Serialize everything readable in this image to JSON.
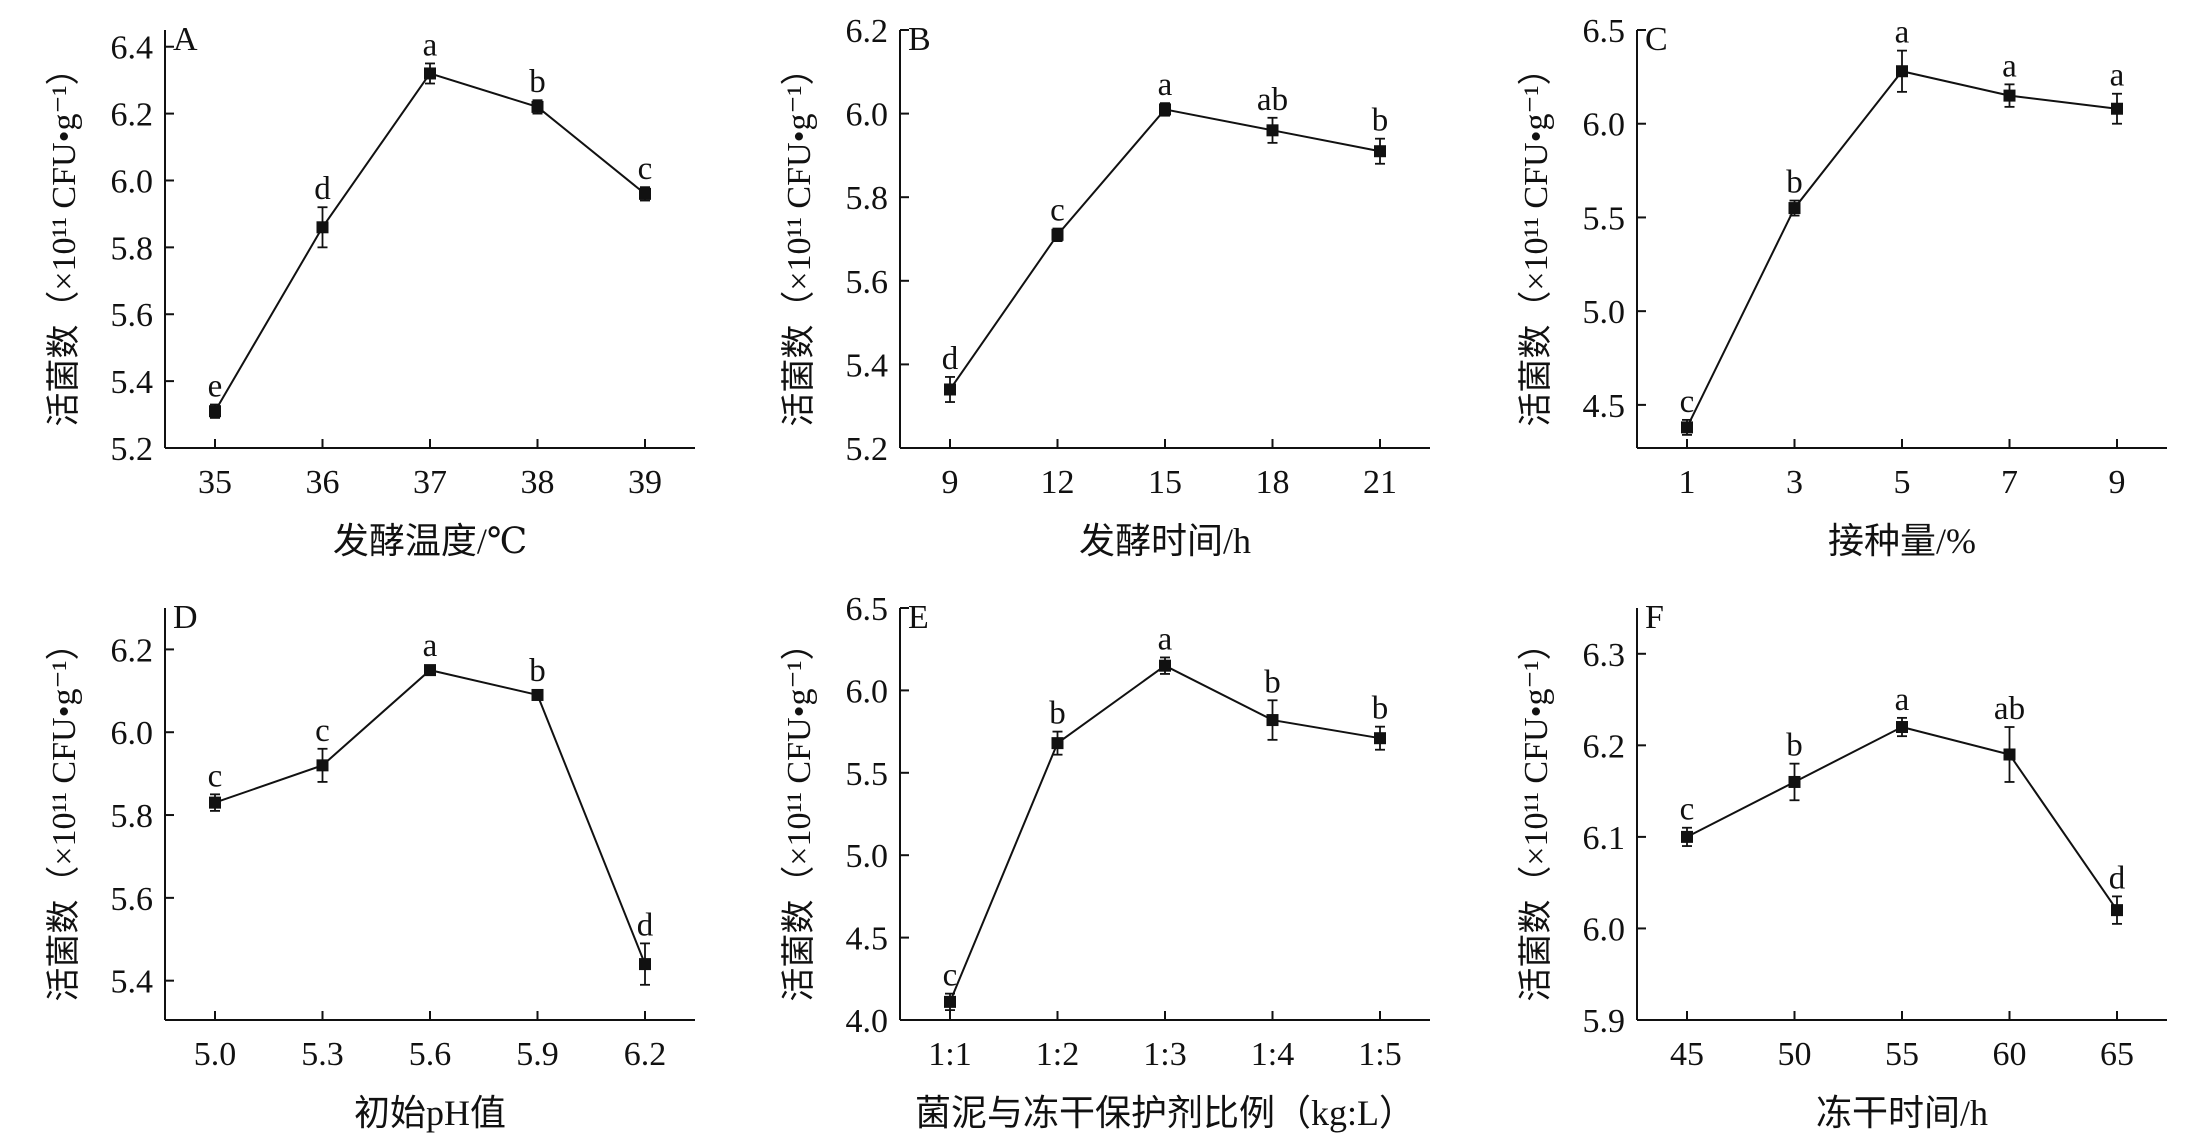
{
  "chart_data": [
    {
      "type": "line",
      "panel": "A",
      "xlabel": "发酵温度/℃",
      "ylabel": "活菌数（×10¹¹ CFU•g⁻¹）",
      "categories": [
        "35",
        "36",
        "37",
        "38",
        "39"
      ],
      "values": [
        5.31,
        5.86,
        6.32,
        6.22,
        5.96
      ],
      "errors": [
        0.02,
        0.06,
        0.03,
        0.02,
        0.02
      ],
      "labels": [
        "e",
        "d",
        "a",
        "b",
        "c"
      ],
      "ylim": [
        5.2,
        6.45
      ],
      "yticks": [
        "5.2",
        "5.4",
        "5.6",
        "5.8",
        "6.0",
        "6.2",
        "6.4"
      ]
    },
    {
      "type": "line",
      "panel": "B",
      "xlabel": "发酵时间/h",
      "ylabel": "活菌数（×10¹¹ CFU•g⁻¹）",
      "categories": [
        "9",
        "12",
        "15",
        "18",
        "21"
      ],
      "values": [
        5.34,
        5.71,
        6.01,
        5.96,
        5.91
      ],
      "errors": [
        0.03,
        0.015,
        0.015,
        0.03,
        0.03
      ],
      "labels": [
        "d",
        "c",
        "a",
        "ab",
        "b"
      ],
      "ylim": [
        5.2,
        6.2
      ],
      "yticks": [
        "5.2",
        "5.4",
        "5.6",
        "5.8",
        "6.0",
        "6.2"
      ]
    },
    {
      "type": "line",
      "panel": "C",
      "xlabel": "接种量/%",
      "ylabel": "活菌数（×10¹¹ CFU•g⁻¹）",
      "categories": [
        "1",
        "3",
        "5",
        "7",
        "9"
      ],
      "values": [
        4.38,
        5.55,
        6.28,
        6.15,
        6.08
      ],
      "errors": [
        0.04,
        0.04,
        0.11,
        0.06,
        0.08
      ],
      "labels": [
        "c",
        "b",
        "a",
        "a",
        "a"
      ],
      "ylim": [
        4.27,
        6.5
      ],
      "yticks": [
        "4.5",
        "5.0",
        "5.5",
        "6.0",
        "6.5"
      ]
    },
    {
      "type": "line",
      "panel": "D",
      "xlabel": "初始pH值",
      "ylabel": "活菌数（×10¹¹ CFU•g⁻¹）",
      "categories": [
        "5.0",
        "5.3",
        "5.6",
        "5.9",
        "6.2"
      ],
      "values": [
        5.83,
        5.92,
        6.15,
        6.09,
        5.44
      ],
      "errors": [
        0.02,
        0.04,
        0.01,
        0.01,
        0.05
      ],
      "labels": [
        "c",
        "c",
        "a",
        "b",
        "d"
      ],
      "ylim": [
        5.305,
        6.3
      ],
      "yticks": [
        "5.4",
        "5.6",
        "5.8",
        "6.0",
        "6.2"
      ]
    },
    {
      "type": "line",
      "panel": "E",
      "xlabel": "菌泥与冻干保护剂比例（kg:L）",
      "ylabel": "活菌数（×10¹¹ CFU•g⁻¹）",
      "categories": [
        "1:1",
        "1:2",
        "1:3",
        "1:4",
        "1:5"
      ],
      "values": [
        4.11,
        5.68,
        6.15,
        5.82,
        5.71
      ],
      "errors": [
        0.05,
        0.07,
        0.05,
        0.12,
        0.07
      ],
      "labels": [
        "c",
        "b",
        "a",
        "b",
        "b"
      ],
      "ylim": [
        4.0,
        6.5
      ],
      "yticks": [
        "4.0",
        "4.5",
        "5.0",
        "5.5",
        "6.0",
        "6.5"
      ]
    },
    {
      "type": "line",
      "panel": "F",
      "xlabel": "冻干时间/h",
      "ylabel": "活菌数（×10¹¹ CFU•g⁻¹）",
      "categories": [
        "45",
        "50",
        "55",
        "60",
        "65"
      ],
      "values": [
        6.1,
        6.16,
        6.22,
        6.19,
        6.02
      ],
      "errors": [
        0.01,
        0.02,
        0.01,
        0.03,
        0.015
      ],
      "labels": [
        "c",
        "b",
        "a",
        "ab",
        "d"
      ],
      "ylim": [
        5.9,
        6.35
      ],
      "yticks": [
        "5.9",
        "6.0",
        "6.1",
        "6.2",
        "6.3"
      ]
    }
  ]
}
